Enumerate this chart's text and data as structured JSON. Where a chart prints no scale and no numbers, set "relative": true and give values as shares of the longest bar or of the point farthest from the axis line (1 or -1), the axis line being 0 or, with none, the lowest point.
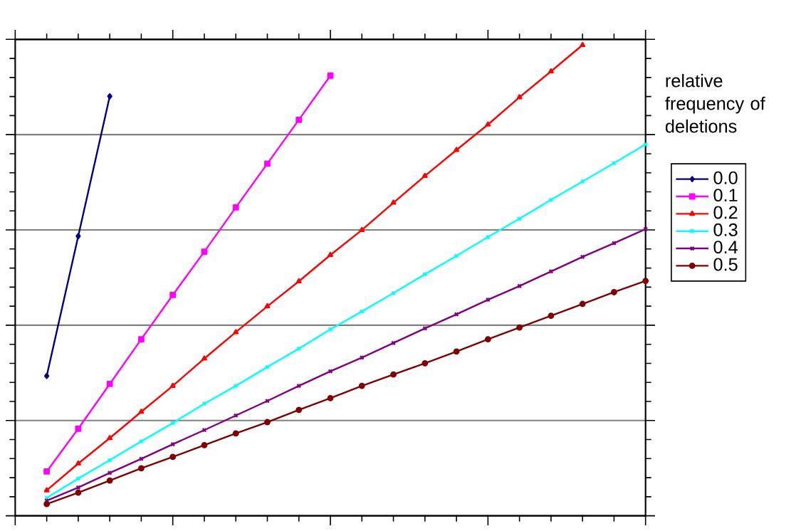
{
  "chart_data": {
    "type": "line",
    "relative": true,
    "legend_title": "relative frequency of deletions",
    "legend": "right",
    "grid": "y",
    "line_style": "solid",
    "categories": [
      null,
      null,
      null,
      null,
      null,
      null,
      null,
      null,
      null,
      null,
      null,
      null,
      null,
      null,
      null,
      null,
      null,
      null,
      null,
      null
    ],
    "series": [
      {
        "name": "0.0",
        "color": "#000080",
        "marker": "diamond",
        "values": [
          0.297,
          0.594,
          0.891,
          null,
          null,
          null,
          null,
          null,
          null,
          null,
          null,
          null,
          null,
          null,
          null,
          null,
          null,
          null,
          null,
          null
        ]
      },
      {
        "name": "0.1",
        "color": "#ff00ff",
        "marker": "square",
        "values": [
          0.094,
          0.185,
          0.28,
          0.375,
          0.469,
          0.561,
          0.655,
          0.748,
          0.841,
          0.935,
          null,
          null,
          null,
          null,
          null,
          null,
          null,
          null,
          null,
          null
        ]
      },
      {
        "name": "0.2",
        "color": "#ff0000",
        "marker": "triangle",
        "values": [
          0.054,
          0.111,
          0.165,
          0.221,
          0.276,
          0.334,
          0.39,
          0.445,
          0.498,
          0.554,
          0.607,
          0.665,
          0.722,
          0.777,
          0.831,
          0.889,
          0.944,
          1.0,
          null,
          null
        ]
      },
      {
        "name": "0.3",
        "color": "#00ffff",
        "marker": "cross",
        "values": [
          0.038,
          0.079,
          0.118,
          0.158,
          0.197,
          0.238,
          0.276,
          0.316,
          0.355,
          0.396,
          0.434,
          0.473,
          0.513,
          0.552,
          0.592,
          0.631,
          0.671,
          0.71,
          0.749,
          0.789
        ]
      },
      {
        "name": "0.4",
        "color": "#800080",
        "marker": "cross",
        "values": [
          0.032,
          0.06,
          0.091,
          0.121,
          0.152,
          0.182,
          0.213,
          0.244,
          0.276,
          0.307,
          0.336,
          0.367,
          0.398,
          0.428,
          0.459,
          0.488,
          0.519,
          0.55,
          0.579,
          0.609
        ]
      },
      {
        "name": "0.5",
        "color": "#800000",
        "marker": "circle",
        "values": [
          0.025,
          0.049,
          0.075,
          0.101,
          0.125,
          0.15,
          0.175,
          0.199,
          0.225,
          0.25,
          0.276,
          0.3,
          0.324,
          0.349,
          0.375,
          0.4,
          0.425,
          0.45,
          0.475,
          0.499
        ]
      }
    ]
  }
}
